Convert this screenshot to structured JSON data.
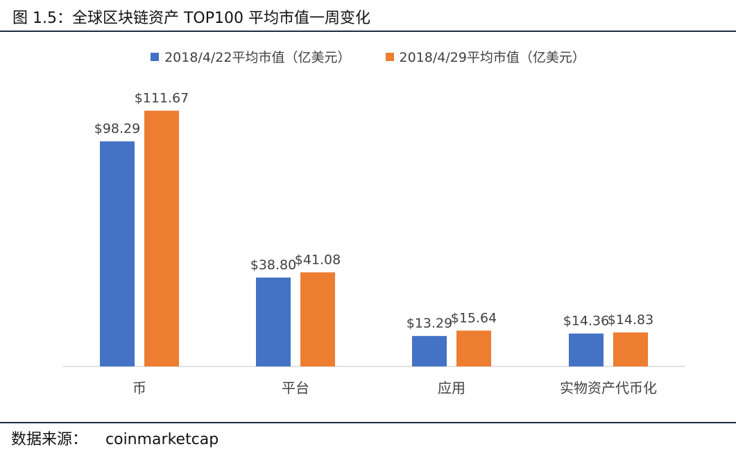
{
  "figure": {
    "title": "图 1.5：全球区块链资产 TOP100 平均市值一周变化",
    "source_label": "数据来源：",
    "source_value": "coinmarketcap"
  },
  "chart_data": {
    "type": "bar",
    "categories": [
      "币",
      "平台",
      "应用",
      "实物资产代币化"
    ],
    "series": [
      {
        "name": "2018/4/22平均市值（亿美元）",
        "color": "#4472C4",
        "values": [
          98.29,
          38.8,
          13.29,
          14.36
        ],
        "labels": [
          "$98.29",
          "$38.80",
          "$13.29",
          "$14.36"
        ]
      },
      {
        "name": "2018/4/29平均市值（亿美元）",
        "color": "#ED7D31",
        "values": [
          111.67,
          41.08,
          15.64,
          14.83
        ],
        "labels": [
          "$111.67",
          "$41.08",
          "$15.64",
          "$14.83"
        ]
      }
    ],
    "ylim": [
      0,
      120
    ],
    "grid": false,
    "legend_position": "top-center",
    "xlabel": "",
    "ylabel": ""
  }
}
